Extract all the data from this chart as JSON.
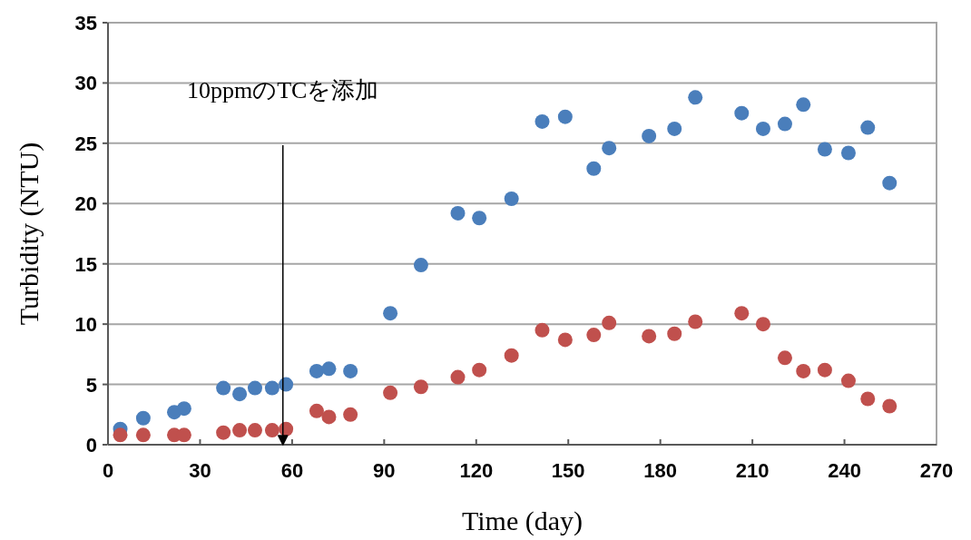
{
  "chart_data": {
    "type": "scatter",
    "xlabel": "Time (day)",
    "ylabel": "Turbidity (NTU)",
    "xlim": [
      0,
      270
    ],
    "xticks": [
      0,
      30,
      60,
      90,
      120,
      150,
      180,
      210,
      240,
      270
    ],
    "ylim": [
      0,
      35
    ],
    "yticks": [
      0,
      5,
      10,
      15,
      20,
      25,
      30,
      35
    ],
    "grid": "y",
    "marker": "circle",
    "ref_lines": [
      {
        "axis": "x",
        "value": 57,
        "label": "10ppmのTCを添加",
        "color": "#000000"
      }
    ],
    "x": [
      4,
      11.5,
      21.6,
      24.8,
      37.6,
      42.9,
      47.9,
      53.5,
      58,
      68,
      72,
      79,
      92,
      102,
      114,
      121,
      131.5,
      141.5,
      149,
      158.3,
      163.3,
      176.3,
      184.6,
      191.4,
      206.5,
      213.5,
      220.6,
      226.6,
      233.6,
      241.3,
      247.6,
      254.7
    ],
    "series": [
      {
        "color": "#4a7ebb",
        "values": [
          1.3,
          2.2,
          2.7,
          3.0,
          4.7,
          4.2,
          4.7,
          4.7,
          5.0,
          6.1,
          6.3,
          6.1,
          10.9,
          14.9,
          19.2,
          18.8,
          20.4,
          26.8,
          27.2,
          22.9,
          24.6,
          25.6,
          26.2,
          28.8,
          27.5,
          26.2,
          26.6,
          28.2,
          24.5,
          24.2,
          26.3,
          21.7
        ]
      },
      {
        "color": "#c0504d",
        "values": [
          0.8,
          0.8,
          0.8,
          0.8,
          1.0,
          1.2,
          1.2,
          1.2,
          1.3,
          2.8,
          2.3,
          2.5,
          4.3,
          4.8,
          5.6,
          6.2,
          7.4,
          9.5,
          8.7,
          9.1,
          10.1,
          9.0,
          9.2,
          10.2,
          10.9,
          10.0,
          7.2,
          6.1,
          6.2,
          5.3,
          3.8,
          3.2
        ]
      }
    ]
  }
}
